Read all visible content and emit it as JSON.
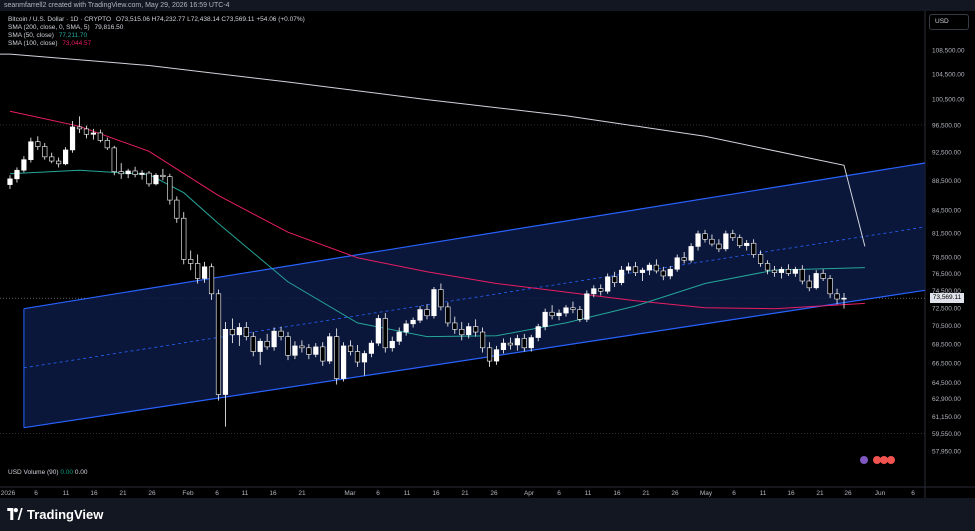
{
  "header": {
    "attribution": "seanmfarrell2 created with TradingView.com, May 29, 2026 16:59 UTC-4"
  },
  "legend": {
    "symbol_line": "Bitcoin / U.S. Dollar · 1D · CRYPTO",
    "ohlc": "O73,515.06 H74,232.77 L72,438.14 C73,569.11 +54.06 (+0.07%)",
    "sma200_label": "SMA (200, close, 0, SMA, 5)",
    "sma200_value": "79,816.50",
    "sma50_label": "SMA (50, close)",
    "sma50_value": "77,211.70",
    "sma100_label": "SMA (100, close)",
    "sma100_value": "73,044.57"
  },
  "currency_button": "USD",
  "volume_legend": {
    "label": "USD Volume (90)",
    "v1": "0.00",
    "v2": "0.00"
  },
  "current_price": "73,569.11",
  "footer": {
    "logo": "TradingView"
  },
  "colors": {
    "up": "#ffffff",
    "down": "#ffffff",
    "sma200": "#d1d4dc",
    "sma50": "#26a69a",
    "sma100": "#e91e63",
    "channel": "#2962ff",
    "channel_fill": "#0c1a44"
  },
  "chart_data": {
    "type": "candlestick",
    "y_axis": {
      "ticks": [
        "108,500.00",
        "104,500.00",
        "100,500.00",
        "96,500.00",
        "92,500.00",
        "88,500.00",
        "84,500.00",
        "81,500.00",
        "78,500.00",
        "76,500.00",
        "74,500.00",
        "72,500.00",
        "70,500.00",
        "68,500.00",
        "66,500.00",
        "64,500.00",
        "62,900.00",
        "61,150.00",
        "59,550.00",
        "57,950.00"
      ],
      "scale": "log"
    },
    "x_axis": {
      "ticks": [
        "2026",
        "6",
        "11",
        "16",
        "21",
        "26",
        "Feb",
        "6",
        "11",
        "16",
        "21",
        "Mar",
        "6",
        "11",
        "16",
        "21",
        "26",
        "Apr",
        "6",
        "11",
        "16",
        "21",
        "26",
        "May",
        "6",
        "11",
        "16",
        "21",
        "26",
        "Jun",
        "6"
      ]
    },
    "series": [
      {
        "name": "SMA (200, close, 0, SMA, 5)",
        "kind": "line"
      },
      {
        "name": "SMA (50, close)",
        "kind": "line"
      },
      {
        "name": "SMA (100, close)",
        "kind": "line"
      }
    ],
    "candles": [
      {
        "o": 87900,
        "h": 89200,
        "l": 87300,
        "c": 88700
      },
      {
        "o": 88700,
        "h": 90300,
        "l": 88200,
        "c": 89900
      },
      {
        "o": 89900,
        "h": 91900,
        "l": 89600,
        "c": 91400
      },
      {
        "o": 91400,
        "h": 94600,
        "l": 91000,
        "c": 94000
      },
      {
        "o": 94000,
        "h": 94800,
        "l": 92800,
        "c": 93300
      },
      {
        "o": 93300,
        "h": 93800,
        "l": 91400,
        "c": 91800
      },
      {
        "o": 91800,
        "h": 92400,
        "l": 90900,
        "c": 91200
      },
      {
        "o": 91200,
        "h": 91700,
        "l": 90300,
        "c": 90800
      },
      {
        "o": 90800,
        "h": 93200,
        "l": 90600,
        "c": 92800
      },
      {
        "o": 92800,
        "h": 97100,
        "l": 92400,
        "c": 96200
      },
      {
        "o": 96200,
        "h": 97800,
        "l": 95300,
        "c": 95900
      },
      {
        "o": 95900,
        "h": 96400,
        "l": 94500,
        "c": 95100
      },
      {
        "o": 95100,
        "h": 95900,
        "l": 94300,
        "c": 95300
      },
      {
        "o": 95300,
        "h": 95800,
        "l": 93900,
        "c": 94200
      },
      {
        "o": 94200,
        "h": 94600,
        "l": 92800,
        "c": 93100
      },
      {
        "o": 93100,
        "h": 93400,
        "l": 89200,
        "c": 89700
      },
      {
        "o": 89700,
        "h": 90900,
        "l": 88700,
        "c": 89400
      },
      {
        "o": 89400,
        "h": 90100,
        "l": 88800,
        "c": 89800
      },
      {
        "o": 89800,
        "h": 90400,
        "l": 88900,
        "c": 89300
      },
      {
        "o": 89300,
        "h": 89900,
        "l": 88600,
        "c": 89500
      },
      {
        "o": 89500,
        "h": 89800,
        "l": 87600,
        "c": 88000
      },
      {
        "o": 88000,
        "h": 89500,
        "l": 87800,
        "c": 89200
      },
      {
        "o": 89200,
        "h": 90100,
        "l": 88500,
        "c": 89000
      },
      {
        "o": 89000,
        "h": 89400,
        "l": 85200,
        "c": 85800
      },
      {
        "o": 85800,
        "h": 86300,
        "l": 82800,
        "c": 83400
      },
      {
        "o": 83400,
        "h": 84200,
        "l": 77600,
        "c": 78200
      },
      {
        "o": 78200,
        "h": 79300,
        "l": 76900,
        "c": 77700
      },
      {
        "o": 77700,
        "h": 78800,
        "l": 75300,
        "c": 75900
      },
      {
        "o": 75900,
        "h": 77900,
        "l": 75400,
        "c": 77300
      },
      {
        "o": 77300,
        "h": 77700,
        "l": 73400,
        "c": 74100
      },
      {
        "o": 74100,
        "h": 74600,
        "l": 62700,
        "c": 63300
      },
      {
        "o": 63300,
        "h": 70900,
        "l": 60200,
        "c": 70100
      },
      {
        "o": 70100,
        "h": 71300,
        "l": 68600,
        "c": 69500
      },
      {
        "o": 69500,
        "h": 70800,
        "l": 68300,
        "c": 70300
      },
      {
        "o": 70300,
        "h": 70900,
        "l": 68900,
        "c": 69300
      },
      {
        "o": 69300,
        "h": 69800,
        "l": 67200,
        "c": 67700
      },
      {
        "o": 67700,
        "h": 69100,
        "l": 66300,
        "c": 68800
      },
      {
        "o": 68800,
        "h": 69600,
        "l": 67900,
        "c": 68200
      },
      {
        "o": 68200,
        "h": 70300,
        "l": 67800,
        "c": 69900
      },
      {
        "o": 69900,
        "h": 70400,
        "l": 68900,
        "c": 69300
      },
      {
        "o": 69300,
        "h": 69800,
        "l": 66800,
        "c": 67300
      },
      {
        "o": 67300,
        "h": 68800,
        "l": 66900,
        "c": 68300
      },
      {
        "o": 68300,
        "h": 68900,
        "l": 67600,
        "c": 68100
      },
      {
        "o": 68100,
        "h": 68500,
        "l": 66900,
        "c": 67400
      },
      {
        "o": 67400,
        "h": 68600,
        "l": 67100,
        "c": 68200
      },
      {
        "o": 68200,
        "h": 68700,
        "l": 66200,
        "c": 66700
      },
      {
        "o": 66700,
        "h": 69700,
        "l": 66400,
        "c": 69300
      },
      {
        "o": 69300,
        "h": 70200,
        "l": 64300,
        "c": 64900
      },
      {
        "o": 64900,
        "h": 68700,
        "l": 64600,
        "c": 68300
      },
      {
        "o": 68300,
        "h": 68900,
        "l": 67300,
        "c": 67700
      },
      {
        "o": 67700,
        "h": 68400,
        "l": 66100,
        "c": 66600
      },
      {
        "o": 66600,
        "h": 67800,
        "l": 65200,
        "c": 67500
      },
      {
        "o": 67500,
        "h": 68900,
        "l": 67100,
        "c": 68600
      },
      {
        "o": 68600,
        "h": 71700,
        "l": 68300,
        "c": 71300
      },
      {
        "o": 71300,
        "h": 71900,
        "l": 67600,
        "c": 68100
      },
      {
        "o": 68100,
        "h": 69300,
        "l": 67700,
        "c": 68800
      },
      {
        "o": 68800,
        "h": 70300,
        "l": 68400,
        "c": 69800
      },
      {
        "o": 69800,
        "h": 71100,
        "l": 69400,
        "c": 70700
      },
      {
        "o": 70700,
        "h": 71400,
        "l": 70300,
        "c": 71100
      },
      {
        "o": 71100,
        "h": 72700,
        "l": 70800,
        "c": 72300
      },
      {
        "o": 72300,
        "h": 72900,
        "l": 71200,
        "c": 71600
      },
      {
        "o": 71600,
        "h": 74900,
        "l": 71300,
        "c": 74600
      },
      {
        "o": 74600,
        "h": 75300,
        "l": 72200,
        "c": 72600
      },
      {
        "o": 72600,
        "h": 73100,
        "l": 70400,
        "c": 70800
      },
      {
        "o": 70800,
        "h": 71500,
        "l": 69600,
        "c": 70100
      },
      {
        "o": 70100,
        "h": 70900,
        "l": 68900,
        "c": 69500
      },
      {
        "o": 69500,
        "h": 70800,
        "l": 69100,
        "c": 70400
      },
      {
        "o": 70400,
        "h": 71200,
        "l": 69300,
        "c": 69800
      },
      {
        "o": 69800,
        "h": 70300,
        "l": 67600,
        "c": 68100
      },
      {
        "o": 68100,
        "h": 68700,
        "l": 66100,
        "c": 66700
      },
      {
        "o": 66700,
        "h": 68300,
        "l": 66300,
        "c": 67900
      },
      {
        "o": 67900,
        "h": 69100,
        "l": 67500,
        "c": 68600
      },
      {
        "o": 68600,
        "h": 69200,
        "l": 67900,
        "c": 68400
      },
      {
        "o": 68400,
        "h": 69500,
        "l": 67800,
        "c": 69100
      },
      {
        "o": 69100,
        "h": 69600,
        "l": 67700,
        "c": 68100
      },
      {
        "o": 68100,
        "h": 69500,
        "l": 67700,
        "c": 69200
      },
      {
        "o": 69200,
        "h": 70700,
        "l": 68800,
        "c": 70400
      },
      {
        "o": 70400,
        "h": 72400,
        "l": 70000,
        "c": 72000
      },
      {
        "o": 72000,
        "h": 72800,
        "l": 71200,
        "c": 71600
      },
      {
        "o": 71600,
        "h": 72300,
        "l": 71100,
        "c": 71900
      },
      {
        "o": 71900,
        "h": 72800,
        "l": 71500,
        "c": 72500
      },
      {
        "o": 72500,
        "h": 73200,
        "l": 71900,
        "c": 72300
      },
      {
        "o": 72300,
        "h": 72700,
        "l": 70900,
        "c": 71200
      },
      {
        "o": 71200,
        "h": 74500,
        "l": 70900,
        "c": 74100
      },
      {
        "o": 74100,
        "h": 75100,
        "l": 73700,
        "c": 74700
      },
      {
        "o": 74700,
        "h": 75200,
        "l": 73900,
        "c": 74400
      },
      {
        "o": 74400,
        "h": 76500,
        "l": 74100,
        "c": 76100
      },
      {
        "o": 76100,
        "h": 76700,
        "l": 74900,
        "c": 75400
      },
      {
        "o": 75400,
        "h": 77400,
        "l": 75100,
        "c": 76900
      },
      {
        "o": 76900,
        "h": 77800,
        "l": 76500,
        "c": 77300
      },
      {
        "o": 77300,
        "h": 77900,
        "l": 76200,
        "c": 76600
      },
      {
        "o": 76600,
        "h": 77200,
        "l": 75600,
        "c": 76900
      },
      {
        "o": 76900,
        "h": 77800,
        "l": 76300,
        "c": 77500
      },
      {
        "o": 77500,
        "h": 78200,
        "l": 76500,
        "c": 76800
      },
      {
        "o": 76800,
        "h": 77300,
        "l": 75700,
        "c": 76200
      },
      {
        "o": 76200,
        "h": 77400,
        "l": 75800,
        "c": 77000
      },
      {
        "o": 77000,
        "h": 78800,
        "l": 76700,
        "c": 78400
      },
      {
        "o": 78400,
        "h": 79100,
        "l": 77700,
        "c": 78100
      },
      {
        "o": 78100,
        "h": 80200,
        "l": 77800,
        "c": 79800
      },
      {
        "o": 79800,
        "h": 81800,
        "l": 79300,
        "c": 81400
      },
      {
        "o": 81400,
        "h": 81900,
        "l": 80300,
        "c": 80700
      },
      {
        "o": 80700,
        "h": 81300,
        "l": 79800,
        "c": 80100
      },
      {
        "o": 80100,
        "h": 80700,
        "l": 79100,
        "c": 79500
      },
      {
        "o": 79500,
        "h": 81800,
        "l": 79200,
        "c": 81400
      },
      {
        "o": 81400,
        "h": 81900,
        "l": 80500,
        "c": 80900
      },
      {
        "o": 80900,
        "h": 81300,
        "l": 79600,
        "c": 79900
      },
      {
        "o": 79900,
        "h": 80600,
        "l": 79300,
        "c": 80200
      },
      {
        "o": 80200,
        "h": 80700,
        "l": 78400,
        "c": 78800
      },
      {
        "o": 78800,
        "h": 79300,
        "l": 77300,
        "c": 77700
      },
      {
        "o": 77700,
        "h": 78100,
        "l": 76400,
        "c": 76900
      },
      {
        "o": 76900,
        "h": 77400,
        "l": 76100,
        "c": 76600
      },
      {
        "o": 76600,
        "h": 77300,
        "l": 75900,
        "c": 77000
      },
      {
        "o": 77000,
        "h": 77600,
        "l": 76200,
        "c": 76500
      },
      {
        "o": 76500,
        "h": 77300,
        "l": 76100,
        "c": 77000
      },
      {
        "o": 77000,
        "h": 77500,
        "l": 75200,
        "c": 75600
      },
      {
        "o": 75600,
        "h": 76300,
        "l": 74400,
        "c": 74800
      },
      {
        "o": 74800,
        "h": 76900,
        "l": 74600,
        "c": 76500
      },
      {
        "o": 76500,
        "h": 77000,
        "l": 75600,
        "c": 75900
      },
      {
        "o": 75900,
        "h": 76300,
        "l": 73600,
        "c": 74100
      },
      {
        "o": 74100,
        "h": 74700,
        "l": 72900,
        "c": 73500
      },
      {
        "o": 73500,
        "h": 74200,
        "l": 72400,
        "c": 73600
      }
    ],
    "sma200": [
      [
        0,
        107800
      ],
      [
        20,
        105900
      ],
      [
        40,
        103200
      ],
      [
        60,
        100400
      ],
      [
        80,
        97900
      ],
      [
        100,
        94800
      ],
      [
        120,
        90600
      ],
      [
        123,
        79800
      ]
    ],
    "sma50": [
      [
        0,
        89400
      ],
      [
        10,
        89900
      ],
      [
        20,
        89300
      ],
      [
        25,
        86800
      ],
      [
        30,
        82700
      ],
      [
        40,
        75500
      ],
      [
        50,
        70800
      ],
      [
        60,
        69300
      ],
      [
        70,
        69400
      ],
      [
        80,
        70800
      ],
      [
        90,
        72700
      ],
      [
        100,
        75300
      ],
      [
        110,
        76900
      ],
      [
        123,
        77200
      ]
    ],
    "sma100": [
      [
        0,
        98600
      ],
      [
        10,
        96300
      ],
      [
        20,
        92600
      ],
      [
        30,
        86400
      ],
      [
        40,
        81600
      ],
      [
        50,
        78400
      ],
      [
        60,
        76700
      ],
      [
        70,
        75300
      ],
      [
        80,
        74300
      ],
      [
        90,
        73300
      ],
      [
        100,
        72500
      ],
      [
        110,
        72400
      ],
      [
        123,
        73000
      ]
    ],
    "channel": {
      "upper_start": [
        2,
        72400
      ],
      "upper_end": [
        134,
        91300
      ],
      "lower_start": [
        2,
        60100
      ],
      "lower_end": [
        134,
        74800
      ],
      "mid_start": [
        2,
        66000
      ],
      "mid_end": [
        134,
        82600
      ]
    }
  }
}
